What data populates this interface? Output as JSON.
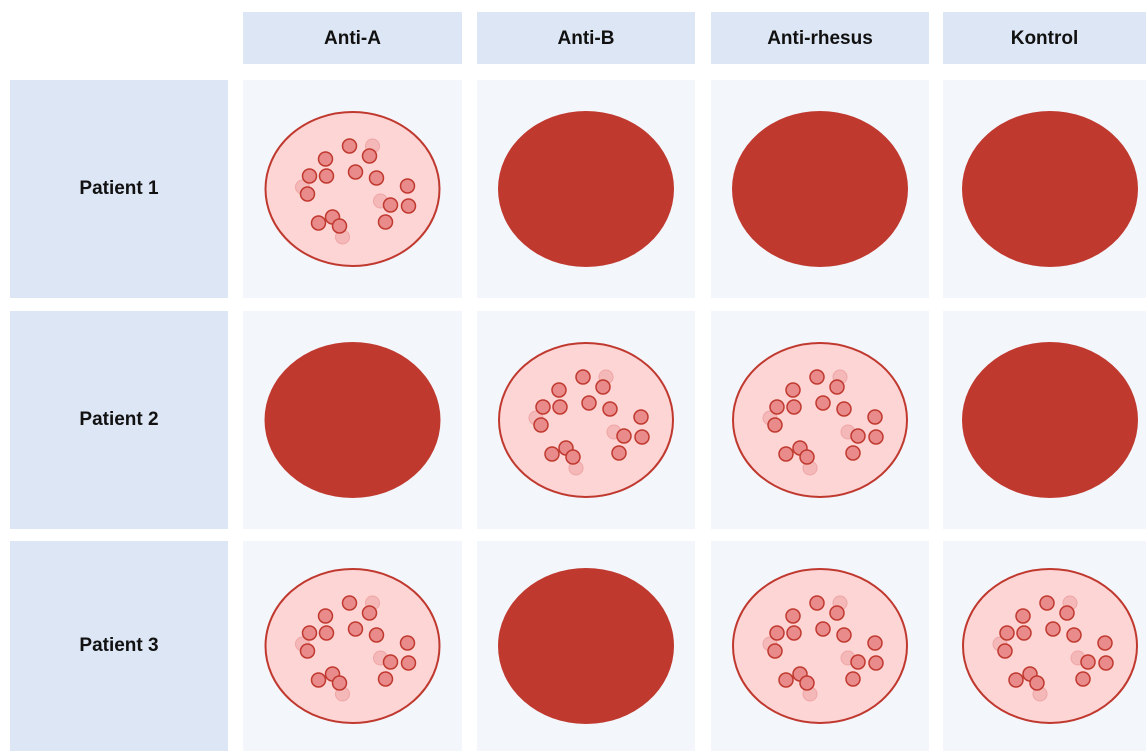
{
  "table": {
    "columns": [
      "Anti-A",
      "Anti-B",
      "Anti-rhesus",
      "Kontrol"
    ],
    "rows": [
      "Patient 1",
      "Patient 2",
      "Patient 3"
    ]
  }
}
